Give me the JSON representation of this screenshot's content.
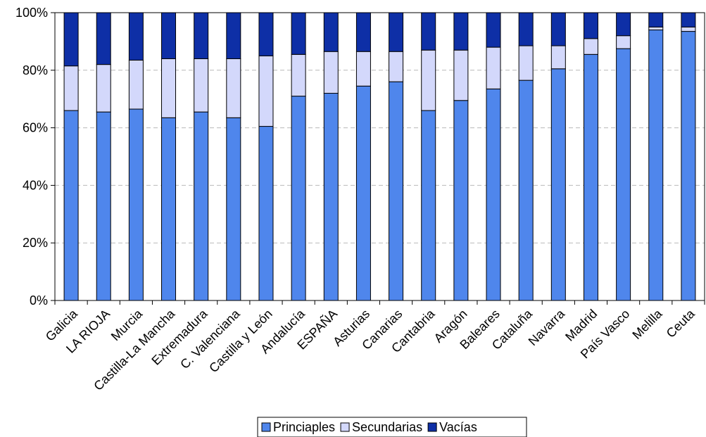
{
  "chart_data": {
    "type": "bar",
    "stacked": true,
    "percent": true,
    "categories": [
      "Galicia",
      "LA RIOJA",
      "Murcia",
      "Castilla-La Mancha",
      "Extremadura",
      "C. Valenciana",
      "Castilla y León",
      "Andalucía",
      "ESPAÑA",
      "Asturias",
      "Canarias",
      "Cantabria",
      "Aragón",
      "Baleares",
      "Cataluña",
      "Navarra",
      "Madrid",
      "País Vasco",
      "Melilla",
      "Ceuta"
    ],
    "series": [
      {
        "name": "Principles",
        "label": "Princiaples",
        "color": "#4f86ec",
        "values": [
          66,
          65.5,
          66.5,
          63.5,
          65.5,
          63.5,
          60.5,
          71,
          72,
          74.5,
          76,
          66,
          69.5,
          73.5,
          76.5,
          80.5,
          85.5,
          87.5,
          94,
          93.5
        ]
      },
      {
        "name": "Secundarias",
        "label": "Secundarias",
        "color": "#d3d8fb",
        "values": [
          15.5,
          16.5,
          17,
          20.5,
          18.5,
          20.5,
          24.5,
          14.5,
          14.5,
          12,
          10.5,
          21,
          17.5,
          14.5,
          12,
          8,
          5.5,
          4.5,
          1,
          1.5
        ]
      },
      {
        "name": "Vacías",
        "label": "Vacías",
        "color": "#0e2fa6",
        "values": [
          18.5,
          18,
          16.5,
          16,
          16,
          16,
          15,
          14.5,
          13.5,
          13.5,
          13.5,
          13,
          13,
          12,
          11.5,
          11.5,
          9,
          8,
          5,
          5
        ]
      }
    ],
    "y_ticks": [
      "0%",
      "20%",
      "40%",
      "60%",
      "80%",
      "100%"
    ],
    "ylim": [
      0,
      100
    ],
    "grid": "horizontal-dashed",
    "legend_position": "bottom"
  }
}
